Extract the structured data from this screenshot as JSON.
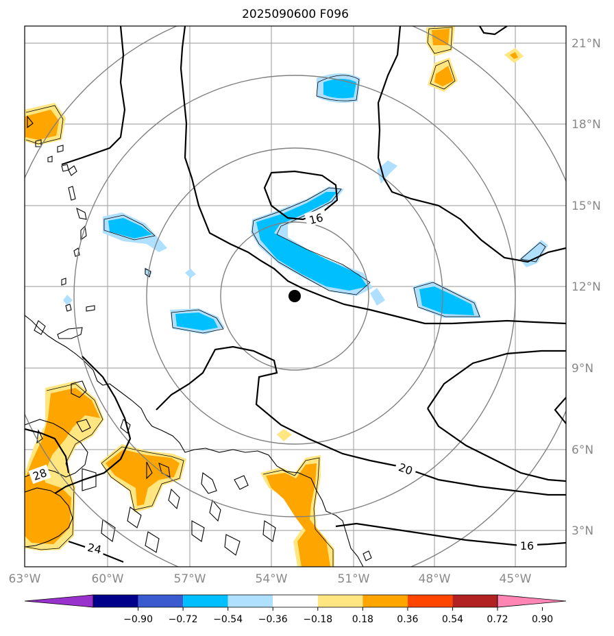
{
  "title": "2025090600 F096",
  "lon_labels": [
    "63°W",
    "60°W",
    "57°W",
    "54°W",
    "51°W",
    "48°W",
    "45°W"
  ],
  "lat_labels": [
    "21°N",
    "18°N",
    "15°N",
    "12°N",
    "9°N",
    "6°N",
    "3°N"
  ],
  "contour_labels": [
    "16",
    "20",
    "16",
    "28",
    "24"
  ],
  "colorbar": {
    "tick_labels": [
      "−0.90",
      "−0.72",
      "−0.54",
      "−0.36",
      "−0.18",
      "0.18",
      "0.36",
      "0.54",
      "0.72",
      "0.90"
    ],
    "colors": [
      "#9932cc",
      "#00008b",
      "#3a5bd0",
      "#00bfff",
      "#b0e0ff",
      "#ffffff",
      "#ffe680",
      "#ffa500",
      "#ff4500",
      "#b22222",
      "#ff85b4"
    ]
  },
  "storm_center": {
    "lon": -52.9,
    "lat": 11.6
  },
  "range_rings_km": [
    200,
    400,
    600,
    800
  ]
}
